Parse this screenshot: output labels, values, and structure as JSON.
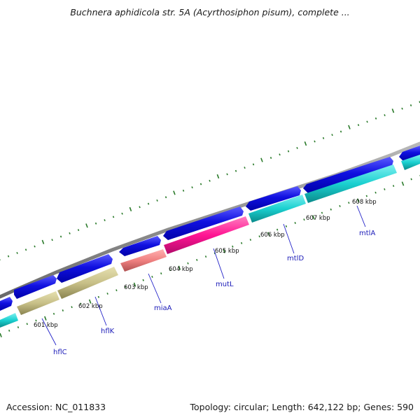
{
  "header": {
    "title": "Buchnera aphidicola str. 5A (Acyrthosiphon pisum), complete ..."
  },
  "footer": {
    "accession": "Accession: NC_011833",
    "stats": "Topology: circular; Length: 642,122 bp; Genes: 590"
  },
  "colors": {
    "backbone": "#8a8a8a",
    "forward_gene": "#0a0ad6",
    "tick": "#2a7a2a",
    "label_line": "#2020c8",
    "label_text": "#1a1ab8"
  },
  "kbp_labels": [
    "601 kbp",
    "602 kbp",
    "603 kbp",
    "604 kbp",
    "605 kbp",
    "606 kbp",
    "607 kbp",
    "608 kbp"
  ],
  "genes": [
    {
      "name": "hflC",
      "color": "#c8c088"
    },
    {
      "name": "hflK",
      "color": "#c8c088"
    },
    {
      "name": "miaA",
      "color": "#f08080"
    },
    {
      "name": "mutL",
      "color": "#ff1493"
    },
    {
      "name": "mtlD",
      "color": "#1ad0d0"
    },
    {
      "name": "mtlA",
      "color": "#1ad0d0"
    }
  ]
}
